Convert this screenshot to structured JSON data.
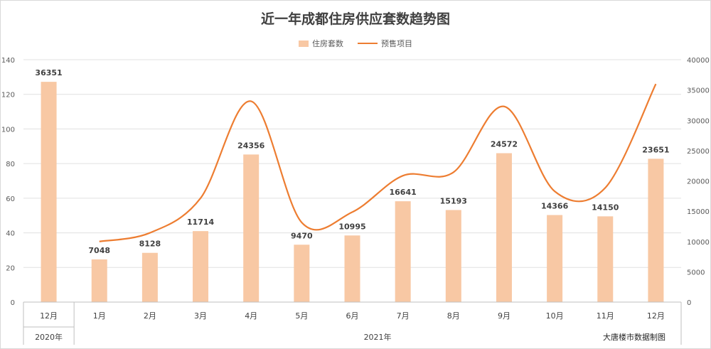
{
  "chart_data": {
    "type": "bar",
    "title": "近一年成都住房供应套数趋势图",
    "categories": [
      "12月",
      "1月",
      "2月",
      "3月",
      "4月",
      "5月",
      "6月",
      "7月",
      "8月",
      "9月",
      "10月",
      "11月",
      "12月"
    ],
    "groups": [
      {
        "label": "2020年",
        "span": 1
      },
      {
        "label": "2021年",
        "span": 12
      }
    ],
    "series": [
      {
        "name": "住房套数",
        "type": "bar",
        "axis": "right",
        "values": [
          36351,
          7048,
          8128,
          11714,
          24356,
          9470,
          10995,
          16641,
          15193,
          24572,
          14366,
          14150,
          23651
        ],
        "labels": [
          "36351",
          "7048",
          "8128",
          "11714",
          "24356",
          "9470",
          "10995",
          "16641",
          "15193",
          "24572",
          "14366",
          "14150",
          "23651"
        ]
      },
      {
        "name": "预售项目",
        "type": "line",
        "axis": "left",
        "smooth": true,
        "values": [
          null,
          35,
          40,
          60,
          116,
          46,
          52,
          73,
          75,
          113,
          64,
          66,
          126
        ]
      }
    ],
    "y_left": {
      "min": 0,
      "max": 140,
      "ticks": [
        "0",
        "20",
        "40",
        "60",
        "80",
        "100",
        "120",
        "140"
      ]
    },
    "y_right": {
      "min": 0,
      "max": 40000,
      "ticks": [
        "0",
        "5000",
        "10000",
        "15000",
        "20000",
        "25000",
        "30000",
        "35000",
        "40000"
      ]
    },
    "grid": true,
    "legend_position": "top",
    "colors": {
      "bar": "#f8c8a4",
      "line": "#ed7d31",
      "grid": "#e0e0e0",
      "axis": "#bfbfbf"
    }
  },
  "source_note": "大唐楼市数据制图"
}
